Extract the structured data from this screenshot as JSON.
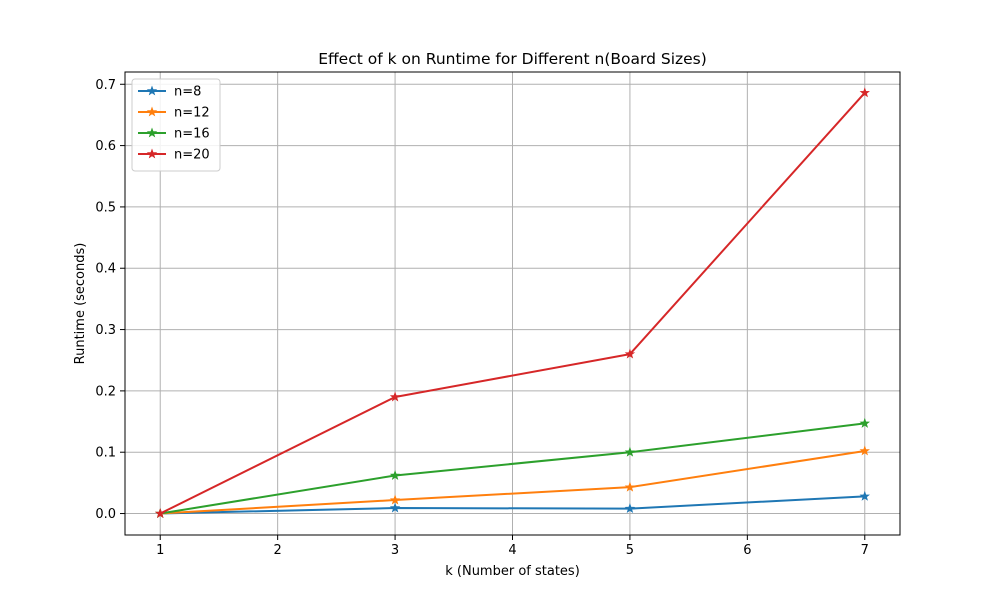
{
  "chart_data": {
    "type": "line",
    "title": "Effect of k on Runtime for Different n(Board Sizes)",
    "xlabel": "k (Number of states)",
    "ylabel": "Runtime (seconds)",
    "x": [
      1,
      3,
      5,
      7
    ],
    "xlim": [
      0.7,
      7.3
    ],
    "ylim": [
      -0.035,
      0.72
    ],
    "xticks": [
      1,
      2,
      3,
      4,
      5,
      6,
      7
    ],
    "yticks": [
      0.0,
      0.1,
      0.2,
      0.3,
      0.4,
      0.5,
      0.6,
      0.7
    ],
    "grid": true,
    "legend_position": "top-left",
    "marker": "star",
    "series": [
      {
        "name": "n=8",
        "color": "#1f77b4",
        "values": [
          0.0,
          0.009,
          0.008,
          0.028
        ]
      },
      {
        "name": "n=12",
        "color": "#ff7f0e",
        "values": [
          0.0,
          0.022,
          0.043,
          0.102
        ]
      },
      {
        "name": "n=16",
        "color": "#2ca02c",
        "values": [
          0.0,
          0.062,
          0.1,
          0.147
        ]
      },
      {
        "name": "n=20",
        "color": "#d62728",
        "values": [
          0.0,
          0.19,
          0.26,
          0.686
        ]
      }
    ]
  }
}
